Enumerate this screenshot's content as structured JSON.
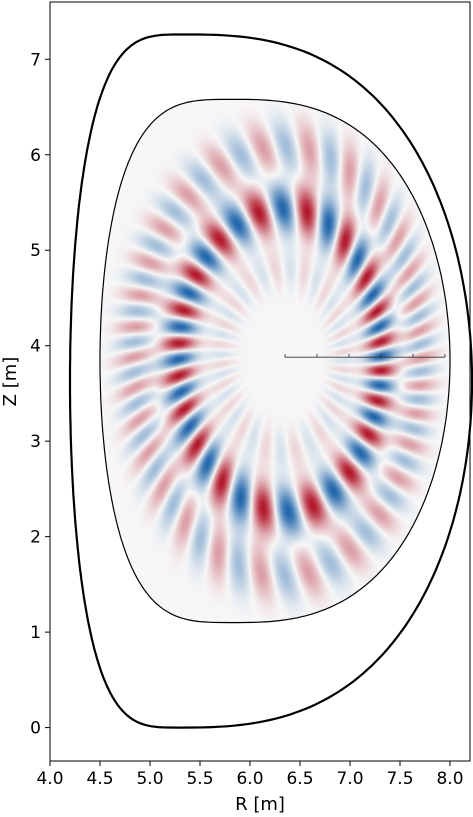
{
  "chart_data": {
    "type": "heatmap",
    "title": "",
    "xlabel": "R [m]",
    "ylabel": "Z [m]",
    "xlim": [
      4.0,
      8.2
    ],
    "ylim": [
      -0.35,
      7.6
    ],
    "xticks": [
      "4.0",
      "4.5",
      "5.0",
      "5.5",
      "6.0",
      "6.5",
      "7.0",
      "7.5",
      "8.0"
    ],
    "xtick_values": [
      4.0,
      4.5,
      5.0,
      5.5,
      6.0,
      6.5,
      7.0,
      7.5,
      8.0
    ],
    "yticks": [
      "0",
      "1",
      "2",
      "3",
      "4",
      "5",
      "6",
      "7"
    ],
    "ytick_values": [
      0,
      1,
      2,
      3,
      4,
      5,
      6,
      7
    ],
    "colormap": "RdBu_r",
    "magnetic_axis": {
      "R": 6.35,
      "Z": 3.88
    },
    "plasma_boundary": {
      "R_outer": 8.0,
      "R_inner": 4.5,
      "Z_top": 6.58,
      "Z_bottom": 1.1,
      "R_top": 5.85,
      "R_bottom": 5.85
    },
    "wall_boundary": {
      "R_outer": 8.22,
      "R_inner": 4.2,
      "Z_top": 7.26,
      "Z_bottom": 0.0,
      "R_top": 5.35,
      "R_bottom": 5.3
    },
    "mode_structure": {
      "poloidal_mode_number": 20,
      "main_ring_radius_fraction": 0.6,
      "outer_ring_radius_fraction": 0.85,
      "peak_amplitude": 1.0
    },
    "radial_scale_line": {
      "R_start": 6.35,
      "R_end": 7.95,
      "Z": 3.88,
      "minor_ticks": 4
    },
    "colors": {
      "positive": "#b2182b",
      "negative": "#2166ac",
      "boundary": "#000000"
    }
  }
}
